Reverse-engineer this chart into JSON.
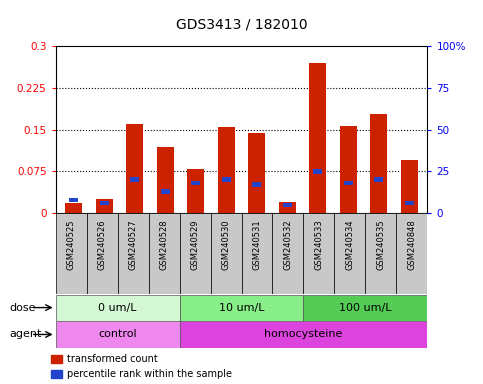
{
  "title": "GDS3413 / 182010",
  "samples": [
    "GSM240525",
    "GSM240526",
    "GSM240527",
    "GSM240528",
    "GSM240529",
    "GSM240530",
    "GSM240531",
    "GSM240532",
    "GSM240533",
    "GSM240534",
    "GSM240535",
    "GSM240848"
  ],
  "red_values": [
    0.018,
    0.025,
    0.16,
    0.118,
    0.08,
    0.155,
    0.143,
    0.02,
    0.27,
    0.157,
    0.178,
    0.095
  ],
  "blue_values_pct": [
    8,
    6,
    20,
    13,
    18,
    20,
    17,
    5,
    25,
    18,
    20,
    6
  ],
  "ylim_left": [
    0,
    0.3
  ],
  "ylim_right": [
    0,
    100
  ],
  "yticks_left": [
    0,
    0.075,
    0.15,
    0.225,
    0.3
  ],
  "ytick_labels_left": [
    "0",
    "0.075",
    "0.15",
    "0.225",
    "0.3"
  ],
  "yticks_right": [
    0,
    25,
    50,
    75,
    100
  ],
  "ytick_labels_right": [
    "0",
    "25",
    "50",
    "75",
    "100%"
  ],
  "dose_groups": [
    {
      "label": "0 um/L",
      "start": 0,
      "end": 4,
      "color": "#d4f7d4"
    },
    {
      "label": "10 um/L",
      "start": 4,
      "end": 8,
      "color": "#88ee88"
    },
    {
      "label": "100 um/L",
      "start": 8,
      "end": 12,
      "color": "#55cc55"
    }
  ],
  "agent_groups": [
    {
      "label": "control",
      "start": 0,
      "end": 4,
      "color": "#ee88ee"
    },
    {
      "label": "homocysteine",
      "start": 4,
      "end": 12,
      "color": "#dd44dd"
    }
  ],
  "bar_color_red": "#cc2200",
  "bar_color_blue": "#2244cc",
  "bar_width": 0.55,
  "background_color": "#ffffff",
  "plot_bg_color": "#ffffff",
  "title_fontsize": 10,
  "tick_fontsize": 7.5,
  "sample_fontsize": 6,
  "annotation_fontsize": 8
}
